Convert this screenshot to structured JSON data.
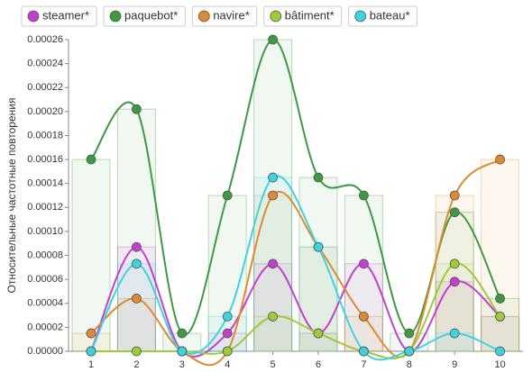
{
  "chart_data": {
    "type": "line",
    "y_label": "Относительные частотные повторения",
    "categories": [
      "1",
      "2",
      "3",
      "4",
      "5",
      "6",
      "7",
      "8",
      "9",
      "10"
    ],
    "series": [
      {
        "name": "steamer*",
        "color": "#c23fcf",
        "values": [
          0,
          8.7e-05,
          0,
          1.5e-05,
          7.3e-05,
          1.5e-05,
          7.3e-05,
          0,
          5.8e-05,
          2.9e-05
        ]
      },
      {
        "name": "paquebot*",
        "color": "#3d9a40",
        "values": [
          0.00016,
          0.000202,
          1.5e-05,
          0.00013,
          0.00026,
          0.000145,
          0.00013,
          1.5e-05,
          0.000116,
          4.4e-05
        ]
      },
      {
        "name": "navire*",
        "color": "#e08a30",
        "values": [
          1.5e-05,
          4.4e-05,
          0,
          0,
          0.00013,
          8.7e-05,
          2.9e-05,
          0,
          0.00013,
          0.00016
        ]
      },
      {
        "name": "bâtiment*",
        "color": "#9ccc3a",
        "values": [
          0,
          0,
          0,
          0,
          2.9e-05,
          1.5e-05,
          0,
          0,
          7.3e-05,
          2.9e-05
        ]
      },
      {
        "name": "bateau*",
        "color": "#3fd3e0",
        "values": [
          0,
          7.3e-05,
          0,
          2.9e-05,
          0.000145,
          8.7e-05,
          0,
          0,
          1.5e-05,
          0
        ]
      }
    ],
    "ylim": [
      0,
      0.00026
    ],
    "yticks": [
      {
        "value": 0,
        "label": "0.00000"
      },
      {
        "value": 2e-05,
        "label": "0.00002"
      },
      {
        "value": 4e-05,
        "label": "0.00004"
      },
      {
        "value": 6e-05,
        "label": "0.00006"
      },
      {
        "value": 8e-05,
        "label": "0.00008"
      },
      {
        "value": 0.0001,
        "label": "0.00010"
      },
      {
        "value": 0.00012,
        "label": "0.00012"
      },
      {
        "value": 0.00014,
        "label": "0.00014"
      },
      {
        "value": 0.00016,
        "label": "0.00016"
      },
      {
        "value": 0.00018,
        "label": "0.00018"
      },
      {
        "value": 0.0002,
        "label": "0.00020"
      },
      {
        "value": 0.00022,
        "label": "0.00022"
      },
      {
        "value": 0.00024,
        "label": "0.00024"
      },
      {
        "value": 0.00026,
        "label": "0.00026"
      }
    ]
  }
}
